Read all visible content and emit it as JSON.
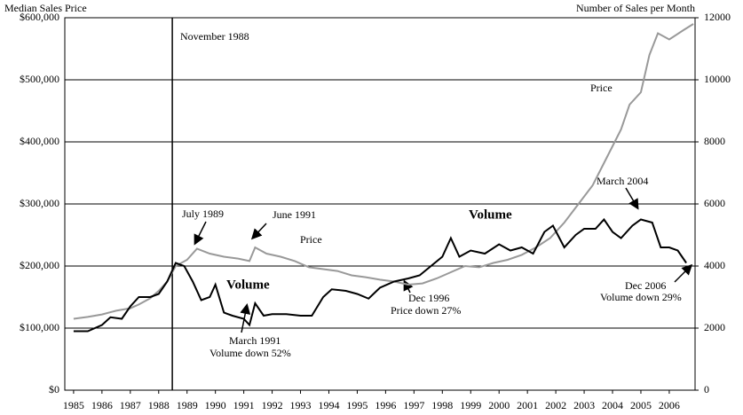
{
  "chart_data": {
    "type": "line",
    "y_axis_label": "Median Sales Price",
    "y2_axis_label": "Number of Sales per Month",
    "xlim": [
      1984.69,
      2006.91
    ],
    "xticks": [
      1985,
      1986,
      1987,
      1988,
      1989,
      1990,
      1991,
      1992,
      1993,
      1994,
      1995,
      1996,
      1997,
      1998,
      1999,
      2000,
      2001,
      2002,
      2003,
      2004,
      2005,
      2006
    ],
    "ylim": [
      0,
      600000
    ],
    "yticks": [
      {
        "value": 0,
        "label": "$0"
      },
      {
        "value": 100000,
        "label": "$100,000"
      },
      {
        "value": 200000,
        "label": "$200,000"
      },
      {
        "value": 300000,
        "label": "$300,000"
      },
      {
        "value": 400000,
        "label": "$400,000"
      },
      {
        "value": 500000,
        "label": "$500,000"
      },
      {
        "value": 600000,
        "label": "$600,000"
      }
    ],
    "y2lim": [
      0,
      12000
    ],
    "y2ticks": [
      0,
      2000,
      4000,
      6000,
      8000,
      10000,
      12000
    ],
    "grid": true,
    "marker_line": {
      "x": 1988.48,
      "label": "November 1988"
    },
    "series": [
      {
        "name": "Price",
        "color": "#999999",
        "axis": "y",
        "x": [
          1985.0,
          1985.5,
          1986.0,
          1986.5,
          1987.0,
          1987.3,
          1987.7,
          1988.0,
          1988.3,
          1988.6,
          1989.0,
          1989.35,
          1989.8,
          1990.3,
          1990.8,
          1991.2,
          1991.4,
          1991.8,
          1992.3,
          1992.8,
          1993.3,
          1993.8,
          1994.3,
          1994.8,
          1995.3,
          1995.8,
          1996.3,
          1996.8,
          1997.3,
          1997.8,
          1998.3,
          1998.8,
          1999.3,
          1999.8,
          2000.3,
          2000.8,
          2001.3,
          2001.8,
          2002.3,
          2002.8,
          2003.3,
          2003.8,
          2004.3,
          2004.6,
          2005.0,
          2005.3,
          2005.6,
          2006.0,
          2006.5,
          2006.85
        ],
        "values": [
          115000,
          118000,
          122000,
          128000,
          132000,
          138000,
          148000,
          160000,
          175000,
          200000,
          210000,
          228000,
          220000,
          215000,
          212000,
          208000,
          230000,
          220000,
          215000,
          208000,
          198000,
          195000,
          192000,
          185000,
          182000,
          178000,
          175000,
          170000,
          172000,
          180000,
          190000,
          200000,
          198000,
          205000,
          210000,
          218000,
          230000,
          245000,
          270000,
          300000,
          330000,
          375000,
          420000,
          460000,
          480000,
          540000,
          575000,
          565000,
          580000,
          590000
        ]
      },
      {
        "name": "Volume",
        "color": "#000000",
        "axis": "y2",
        "x": [
          1985.0,
          1985.5,
          1986.0,
          1986.3,
          1986.7,
          1987.0,
          1987.3,
          1987.7,
          1988.0,
          1988.3,
          1988.6,
          1988.9,
          1989.2,
          1989.5,
          1989.8,
          1990.0,
          1990.3,
          1990.6,
          1991.0,
          1991.2,
          1991.4,
          1991.7,
          1992.0,
          1992.5,
          1993.0,
          1993.4,
          1993.8,
          1994.1,
          1994.6,
          1995.0,
          1995.4,
          1995.8,
          1996.3,
          1996.8,
          1997.2,
          1997.6,
          1998.0,
          1998.3,
          1998.6,
          1999.0,
          1999.5,
          2000.0,
          2000.4,
          2000.8,
          2001.2,
          2001.6,
          2001.9,
          2002.3,
          2002.7,
          2003.0,
          2003.4,
          2003.7,
          2004.0,
          2004.3,
          2004.7,
          2005.0,
          2005.4,
          2005.7,
          2006.0,
          2006.3,
          2006.6
        ],
        "values": [
          1900,
          1900,
          2100,
          2350,
          2300,
          2700,
          3000,
          3000,
          3100,
          3500,
          4100,
          4000,
          3500,
          2900,
          3000,
          3400,
          2500,
          2400,
          2300,
          2100,
          2800,
          2400,
          2450,
          2450,
          2400,
          2400,
          3000,
          3250,
          3200,
          3100,
          2950,
          3300,
          3500,
          3600,
          3700,
          4000,
          4300,
          4900,
          4300,
          4500,
          4400,
          4700,
          4500,
          4600,
          4400,
          5100,
          5300,
          4600,
          5000,
          5200,
          5200,
          5500,
          5100,
          4900,
          5300,
          5500,
          5400,
          4600,
          4600,
          4500,
          4100
        ]
      }
    ],
    "annotations": [
      "July 1989",
      "June 1991",
      "Price",
      "Volume",
      "Volume",
      "Price",
      "March 2004",
      [
        "Dec 1996",
        "Price down 27%"
      ],
      [
        "March 1991",
        "Volume down 52%"
      ],
      [
        "Dec 2006",
        "Volume down 29%"
      ]
    ]
  }
}
